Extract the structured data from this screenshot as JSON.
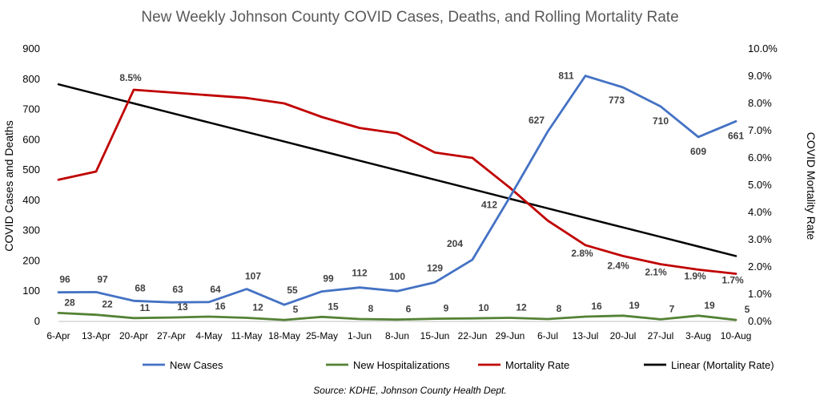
{
  "chart_data": {
    "type": "line",
    "title": "New Weekly Johnson County COVID Cases, Deaths, and Rolling Mortality Rate",
    "ylabel_left": "COVID Cases  and Deaths",
    "ylabel_right": "COVID Mortality Rate",
    "source": "Source: KDHE, Johnson County Health Dept.",
    "categories": [
      "6-Apr",
      "13-Apr",
      "20-Apr",
      "27-Apr",
      "4-May",
      "11-May",
      "18-May",
      "25-May",
      "1-Jun",
      "8-Jun",
      "15-Jun",
      "22-Jun",
      "29-Jun",
      "6-Jul",
      "13-Jul",
      "20-Jul",
      "27-Jul",
      "3-Aug",
      "10-Aug"
    ],
    "left_ticks": [
      "0",
      "100",
      "200",
      "300",
      "400",
      "500",
      "600",
      "700",
      "800",
      "900"
    ],
    "right_ticks": [
      "0.0%",
      "1.0%",
      "2.0%",
      "3.0%",
      "4.0%",
      "5.0%",
      "6.0%",
      "7.0%",
      "8.0%",
      "9.0%",
      "10.0%"
    ],
    "ylim_left": [
      0,
      900
    ],
    "ylim_right": [
      0,
      10
    ],
    "legend_position": "bottom",
    "series": [
      {
        "name": "New Cases",
        "axis": "left",
        "color": "#4472C4",
        "values": [
          96,
          97,
          68,
          63,
          64,
          107,
          55,
          99,
          112,
          100,
          129,
          204,
          412,
          627,
          811,
          773,
          710,
          609,
          661
        ],
        "labels": [
          "96",
          "97",
          "68",
          "63",
          "64",
          "107",
          "55",
          "99",
          "112",
          "100",
          "129",
          "204",
          "412",
          "627",
          "811",
          "773",
          "710",
          "609",
          "661"
        ]
      },
      {
        "name": "New Hospitalizations",
        "axis": "left",
        "color": "#548235",
        "values": [
          28,
          22,
          11,
          13,
          16,
          12,
          5,
          15,
          8,
          6,
          9,
          10,
          12,
          8,
          16,
          19,
          7,
          19,
          5
        ],
        "labels": [
          "28",
          "22",
          "11",
          "13",
          "16",
          "12",
          "5",
          "15",
          "8",
          "6",
          "9",
          "10",
          "12",
          "8",
          "16",
          "19",
          "7",
          "19",
          "5"
        ]
      },
      {
        "name": "Mortality Rate",
        "axis": "right",
        "color": "#C00000",
        "values": [
          5.2,
          5.5,
          8.5,
          8.4,
          8.3,
          8.2,
          8.0,
          7.5,
          7.1,
          6.9,
          6.2,
          6.0,
          4.9,
          3.7,
          2.8,
          2.4,
          2.1,
          1.9,
          1.75
        ],
        "labels": [
          "",
          "",
          "8.5%",
          "",
          "",
          "",
          "",
          "",
          "",
          "",
          "",
          "",
          "",
          "",
          "2.8%",
          "2.4%",
          "2.1%",
          "1.9%",
          "1.7%"
        ]
      },
      {
        "name": "Linear (Mortality Rate)",
        "axis": "right",
        "color": "#000000",
        "values": [
          8.7,
          8.35,
          8.0,
          7.65,
          7.3,
          6.95,
          6.6,
          6.25,
          5.9,
          5.55,
          5.2,
          4.85,
          4.5,
          4.15,
          3.8,
          3.45,
          3.1,
          2.75,
          2.4
        ],
        "labels": []
      }
    ]
  }
}
